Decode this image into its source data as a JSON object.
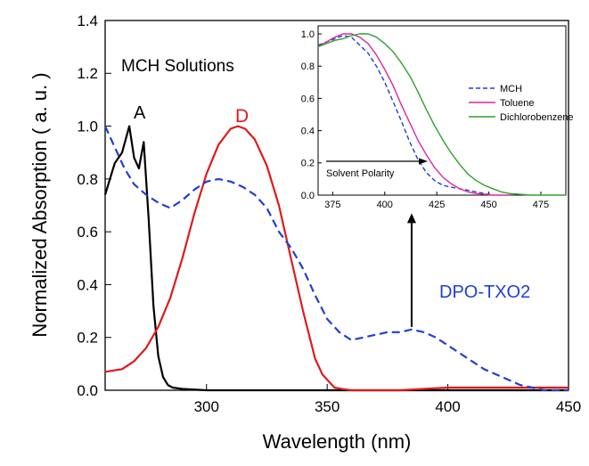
{
  "chart_data": [
    {
      "type": "line",
      "xlabel": "Wavelength (nm)",
      "ylabel": "Normalized Absorption ( a. u. )",
      "xlim": [
        258,
        450
      ],
      "ylim": [
        0,
        1.4
      ],
      "xticks": [
        300,
        350,
        400,
        450
      ],
      "xtick_labels": [
        "300",
        "350",
        "400",
        "450"
      ],
      "yticks": [
        0.0,
        0.2,
        0.4,
        0.6,
        0.8,
        1.0,
        1.2,
        1.4
      ],
      "ytick_labels": [
        "0.0",
        "0.2",
        "0.4",
        "0.6",
        "0.8",
        "1.0",
        "1.2",
        "1.4"
      ],
      "grid": false,
      "annotations": {
        "solution_label": "MCH Solutions",
        "label_A": "A",
        "label_D": "D",
        "label_dpo": "DPO-TXO2"
      },
      "series": [
        {
          "name": "A",
          "color": "#000000",
          "style": "solid",
          "x": [
            258,
            262,
            265,
            268,
            270,
            272,
            274,
            276,
            278,
            280,
            282,
            284,
            286,
            290,
            300,
            320,
            350,
            400,
            450
          ],
          "y": [
            0.74,
            0.86,
            0.9,
            1.0,
            0.88,
            0.84,
            0.94,
            0.65,
            0.32,
            0.13,
            0.05,
            0.02,
            0.01,
            0.005,
            0.0,
            0.0,
            0.0,
            0.0,
            0.0
          ]
        },
        {
          "name": "D",
          "color": "#e01a1a",
          "style": "solid",
          "x": [
            258,
            265,
            270,
            275,
            280,
            285,
            290,
            295,
            300,
            305,
            310,
            313,
            316,
            320,
            325,
            330,
            335,
            340,
            345,
            348,
            350,
            353,
            356,
            360,
            380,
            400,
            420,
            450
          ],
          "y": [
            0.07,
            0.08,
            0.11,
            0.16,
            0.24,
            0.35,
            0.5,
            0.67,
            0.82,
            0.93,
            0.99,
            1.0,
            0.99,
            0.95,
            0.85,
            0.7,
            0.5,
            0.3,
            0.12,
            0.06,
            0.04,
            0.01,
            0.005,
            0.0,
            0.0,
            0.01,
            0.01,
            0.01
          ]
        },
        {
          "name": "DPO-TXO2",
          "color": "#1f3fd6",
          "style": "dashed",
          "x": [
            258,
            262,
            266,
            270,
            275,
            280,
            285,
            290,
            295,
            300,
            305,
            310,
            315,
            320,
            325,
            330,
            335,
            340,
            345,
            350,
            355,
            360,
            365,
            370,
            375,
            380,
            385,
            390,
            395,
            400,
            405,
            410,
            415,
            420,
            425,
            430,
            435,
            440,
            450
          ],
          "y": [
            1.0,
            0.92,
            0.84,
            0.78,
            0.74,
            0.71,
            0.69,
            0.72,
            0.76,
            0.79,
            0.8,
            0.79,
            0.77,
            0.74,
            0.69,
            0.6,
            0.54,
            0.46,
            0.36,
            0.27,
            0.22,
            0.19,
            0.2,
            0.21,
            0.22,
            0.22,
            0.23,
            0.22,
            0.2,
            0.17,
            0.14,
            0.11,
            0.08,
            0.06,
            0.04,
            0.02,
            0.01,
            0.0,
            0.0
          ]
        }
      ],
      "arrow": {
        "x": 385,
        "y_from": 0.24,
        "y_to": 0.67
      }
    },
    {
      "type": "line",
      "position": "inset",
      "xlim": [
        368,
        487
      ],
      "ylim": [
        0,
        1.05
      ],
      "xticks": [
        375,
        400,
        425,
        450,
        475
      ],
      "xtick_labels": [
        "375",
        "400",
        "425",
        "450",
        "475"
      ],
      "yticks": [
        0.0,
        0.2,
        0.4,
        0.6,
        0.8,
        1.0
      ],
      "ytick_labels": [
        "0.0",
        "0.2",
        "0.4",
        "0.6",
        "0.8",
        "1.0"
      ],
      "grid": false,
      "legend": {
        "position": "top-right"
      },
      "annotation": "Solvent Polarity",
      "series": [
        {
          "name": "MCH",
          "color": "#1f3fd6",
          "style": "dashed",
          "x": [
            368,
            372,
            376,
            380,
            384,
            388,
            392,
            396,
            400,
            404,
            408,
            412,
            416,
            420,
            424,
            428,
            432,
            436,
            440,
            444,
            448,
            452
          ],
          "y": [
            0.93,
            0.95,
            0.97,
            0.99,
            0.98,
            0.93,
            0.88,
            0.8,
            0.7,
            0.58,
            0.46,
            0.33,
            0.22,
            0.14,
            0.09,
            0.06,
            0.05,
            0.04,
            0.03,
            0.02,
            0.01,
            0.0
          ]
        },
        {
          "name": "Toluene",
          "color": "#e0269a",
          "style": "solid",
          "x": [
            368,
            372,
            376,
            380,
            384,
            388,
            392,
            396,
            400,
            404,
            408,
            412,
            416,
            420,
            424,
            428,
            432,
            436,
            440,
            444,
            448,
            452,
            456,
            460
          ],
          "y": [
            0.92,
            0.95,
            0.98,
            1.0,
            1.0,
            0.98,
            0.94,
            0.87,
            0.78,
            0.68,
            0.56,
            0.45,
            0.34,
            0.25,
            0.17,
            0.11,
            0.07,
            0.04,
            0.02,
            0.01,
            0.005,
            0.0,
            0.0,
            0.0
          ]
        },
        {
          "name": "Dichlorobenzene",
          "color": "#2ea02e",
          "style": "solid",
          "x": [
            368,
            372,
            376,
            380,
            384,
            388,
            392,
            396,
            400,
            404,
            408,
            412,
            416,
            420,
            424,
            428,
            432,
            436,
            440,
            444,
            448,
            452,
            456,
            460,
            465,
            470,
            475,
            480,
            487
          ],
          "y": [
            0.92,
            0.94,
            0.96,
            0.97,
            0.99,
            1.0,
            1.0,
            0.98,
            0.94,
            0.89,
            0.82,
            0.74,
            0.64,
            0.53,
            0.43,
            0.34,
            0.26,
            0.19,
            0.13,
            0.09,
            0.06,
            0.04,
            0.02,
            0.01,
            0.005,
            0.0,
            0.0,
            0.0,
            0.0
          ]
        }
      ]
    }
  ]
}
